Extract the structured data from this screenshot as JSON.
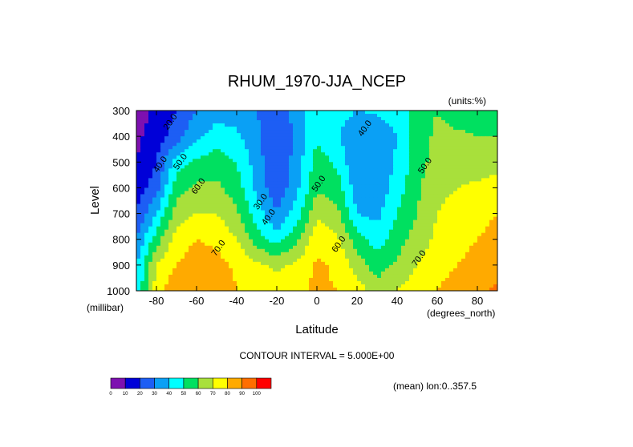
{
  "chart_data": {
    "type": "heatmap",
    "subtype": "filled-contour",
    "title": "RHUM_1970-JJA_NCEP",
    "units_label": "(units:%)",
    "xlabel": "Latitude",
    "x_units": "(degrees_north)",
    "ylabel": "Level",
    "y_units": "(millibar)",
    "xlim": [
      -90,
      90
    ],
    "ylim": [
      1000,
      300
    ],
    "x_ticks": [
      -80,
      -60,
      -40,
      -20,
      0,
      20,
      40,
      60,
      80
    ],
    "y_ticks": [
      300,
      400,
      500,
      600,
      700,
      800,
      900,
      1000
    ],
    "contour_interval_text": "CONTOUR INTERVAL = 5.000E+00",
    "mean_text": "(mean) lon:0..357.5",
    "contour_labels": [
      "20.0",
      "40.0",
      "50.0",
      "60.0",
      "70.0",
      "30.0",
      "40.0",
      "50.0",
      "60.0",
      "40.0",
      "50.0",
      "70.0"
    ],
    "colorbar": {
      "levels": [
        0,
        10,
        20,
        30,
        40,
        50,
        60,
        70,
        80,
        90,
        100
      ],
      "colors": [
        "#7d10b0",
        "#0000d8",
        "#1d5ef4",
        "#0aa0f5",
        "#00ffff",
        "#00e060",
        "#a8e03b",
        "#ffff00",
        "#ffaa00",
        "#ff6e00",
        "#ff0000"
      ]
    },
    "lat": [
      -90,
      -80,
      -70,
      -60,
      -50,
      -40,
      -30,
      -20,
      -10,
      0,
      10,
      20,
      30,
      40,
      50,
      60,
      70,
      80,
      90
    ],
    "lev": [
      300,
      400,
      500,
      600,
      700,
      800,
      900,
      1000
    ],
    "values": [
      [
        5,
        12,
        20,
        30,
        35,
        35,
        30,
        25,
        35,
        48,
        45,
        40,
        42,
        45,
        55,
        60,
        55,
        52,
        55
      ],
      [
        8,
        15,
        25,
        38,
        45,
        42,
        32,
        20,
        32,
        48,
        42,
        30,
        32,
        40,
        55,
        62,
        62,
        60,
        60
      ],
      [
        10,
        20,
        45,
        52,
        55,
        50,
        35,
        20,
        35,
        55,
        48,
        30,
        30,
        42,
        55,
        65,
        66,
        65,
        66
      ],
      [
        15,
        25,
        56,
        62,
        62,
        55,
        37,
        22,
        38,
        58,
        55,
        35,
        33,
        45,
        58,
        68,
        70,
        72,
        74
      ],
      [
        20,
        40,
        65,
        70,
        70,
        62,
        45,
        30,
        45,
        68,
        63,
        40,
        37,
        50,
        60,
        70,
        73,
        76,
        80
      ],
      [
        30,
        55,
        75,
        80,
        78,
        70,
        55,
        45,
        58,
        76,
        72,
        55,
        45,
        55,
        65,
        72,
        76,
        80,
        84
      ],
      [
        40,
        70,
        80,
        85,
        83,
        78,
        72,
        68,
        72,
        82,
        78,
        65,
        55,
        62,
        70,
        76,
        80,
        84,
        86
      ],
      [
        40,
        75,
        88,
        90,
        88,
        80,
        75,
        75,
        78,
        82,
        80,
        75,
        65,
        70,
        75,
        80,
        85,
        88,
        92
      ]
    ]
  }
}
